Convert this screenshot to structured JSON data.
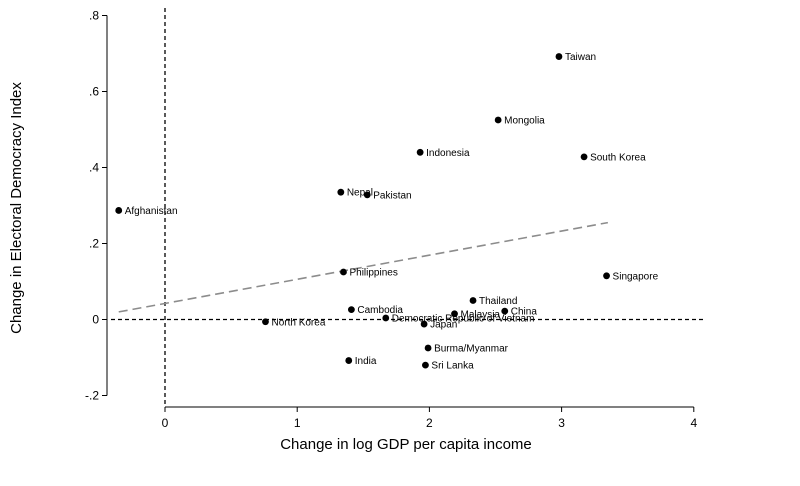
{
  "chart_data": {
    "type": "scatter",
    "title": "",
    "xlabel": "Change in log GDP per capita income",
    "ylabel": "Change in Electoral Democracy Index",
    "xlim": [
      -0.4,
      4.05
    ],
    "ylim": [
      -0.23,
      0.82
    ],
    "xticks": [
      0,
      1,
      2,
      3,
      4
    ],
    "xtick_labels": [
      "0",
      "1",
      "2",
      "3",
      "4"
    ],
    "yticks": [
      -0.2,
      0,
      0.2,
      0.4,
      0.6,
      0.8
    ],
    "ytick_labels": [
      "-.2",
      "0",
      ".2",
      ".4",
      ".6",
      ".8"
    ],
    "grid": false,
    "reference_lines": {
      "x": 0,
      "y": 0
    },
    "fit_line": {
      "x": [
        -0.35,
        3.35
      ],
      "y": [
        0.02,
        0.255
      ]
    },
    "points": [
      {
        "label": "Taiwan",
        "x": 2.98,
        "y": 0.692
      },
      {
        "label": "Mongolia",
        "x": 2.52,
        "y": 0.525
      },
      {
        "label": "Indonesia",
        "x": 1.93,
        "y": 0.44
      },
      {
        "label": "South Korea",
        "x": 3.17,
        "y": 0.428
      },
      {
        "label": "Nepal",
        "x": 1.33,
        "y": 0.335
      },
      {
        "label": "Pakistan",
        "x": 1.53,
        "y": 0.328
      },
      {
        "label": "Afghanistan",
        "x": -0.35,
        "y": 0.287
      },
      {
        "label": "Philippines",
        "x": 1.35,
        "y": 0.125
      },
      {
        "label": "Singapore",
        "x": 3.34,
        "y": 0.115
      },
      {
        "label": "Thailand",
        "x": 2.33,
        "y": 0.05
      },
      {
        "label": "Cambodia",
        "x": 1.41,
        "y": 0.026
      },
      {
        "label": "China",
        "x": 2.57,
        "y": 0.022
      },
      {
        "label": "Malaysia",
        "x": 2.19,
        "y": 0.015
      },
      {
        "label": "Democratic Republic of Vietnam",
        "x": 1.67,
        "y": 0.004
      },
      {
        "label": "North Korea",
        "x": 0.76,
        "y": -0.006
      },
      {
        "label": "Japan",
        "x": 1.96,
        "y": -0.012
      },
      {
        "label": "Burma/Myanmar",
        "x": 1.99,
        "y": -0.075
      },
      {
        "label": "India",
        "x": 1.39,
        "y": -0.108
      },
      {
        "label": "Sri Lanka",
        "x": 1.97,
        "y": -0.12
      }
    ]
  }
}
